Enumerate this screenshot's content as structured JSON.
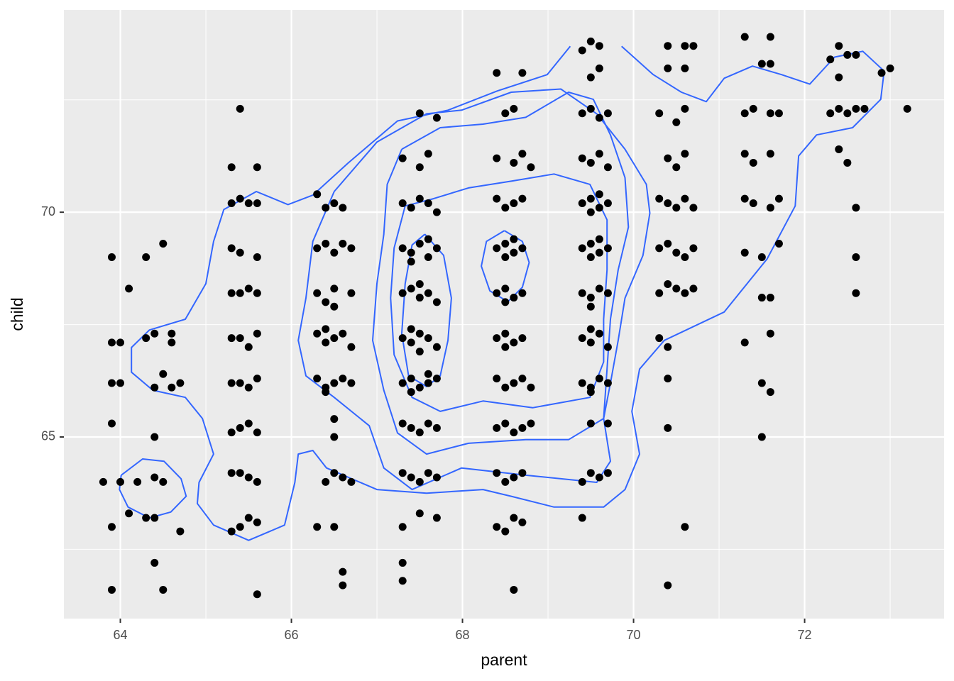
{
  "chart_data": {
    "type": "scatter",
    "x_label": "parent",
    "y_label": "child",
    "xlim": [
      63.34,
      73.63
    ],
    "ylim": [
      60.96,
      74.5
    ],
    "xticks": [
      64,
      66,
      68,
      70,
      72
    ],
    "yticks": [
      65,
      70
    ],
    "xminor": [
      65,
      67,
      69,
      71,
      73
    ],
    "yminor": [
      62.5,
      67.5,
      72.5
    ],
    "grid": true,
    "series": [
      {
        "color": "#000000",
        "x": [
          63.9,
          64.5,
          64.4,
          63.9,
          64.7,
          64.1,
          64.3,
          64.4,
          63.8,
          64.0,
          64.2,
          64.4,
          64.5,
          64.4,
          63.9,
          63.9,
          64.0,
          64.4,
          64.6,
          64.7,
          64.5,
          63.9,
          64.0,
          64.3,
          64.4,
          64.6,
          64.6,
          64.1,
          63.9,
          64.3,
          64.5,
          65.6,
          65.3,
          65.4,
          65.5,
          65.6,
          65.4,
          65.5,
          65.6,
          65.3,
          65.3,
          65.4,
          65.5,
          65.6,
          65.4,
          65.5,
          65.6,
          65.3,
          65.5,
          65.4,
          65.6,
          65.3,
          65.4,
          65.5,
          65.6,
          65.3,
          65.3,
          65.4,
          65.6,
          65.3,
          65.4,
          65.6,
          65.5,
          65.3,
          65.6,
          65.4,
          66.6,
          66.6,
          66.3,
          66.5,
          66.4,
          66.5,
          66.6,
          66.7,
          66.5,
          66.5,
          66.3,
          66.4,
          66.5,
          66.6,
          66.7,
          66.4,
          66.3,
          66.4,
          66.5,
          66.6,
          66.7,
          66.4,
          66.3,
          66.4,
          66.5,
          66.7,
          66.5,
          66.3,
          66.4,
          66.5,
          66.6,
          66.7,
          66.4,
          66.6,
          66.3,
          66.5,
          67.3,
          67.3,
          67.3,
          67.5,
          67.7,
          67.3,
          67.4,
          67.5,
          67.6,
          67.7,
          67.3,
          67.4,
          67.5,
          67.6,
          67.7,
          67.3,
          67.4,
          67.5,
          67.6,
          67.7,
          67.4,
          67.6,
          67.3,
          67.4,
          67.5,
          67.6,
          67.7,
          67.5,
          67.4,
          67.3,
          67.4,
          67.5,
          67.6,
          67.7,
          67.5,
          67.3,
          67.4,
          67.5,
          67.6,
          67.7,
          67.4,
          67.6,
          67.3,
          67.4,
          67.5,
          67.6,
          67.7,
          67.3,
          67.5,
          67.6,
          67.5,
          67.7,
          68.6,
          68.4,
          68.5,
          68.6,
          68.7,
          68.4,
          68.5,
          68.6,
          68.7,
          68.4,
          68.5,
          68.6,
          68.7,
          68.8,
          68.4,
          68.5,
          68.6,
          68.7,
          68.8,
          68.4,
          68.5,
          68.6,
          68.7,
          68.5,
          68.4,
          68.5,
          68.6,
          68.7,
          68.5,
          68.4,
          68.5,
          68.6,
          68.7,
          68.5,
          68.6,
          68.4,
          68.5,
          68.6,
          68.7,
          68.4,
          68.6,
          68.7,
          68.8,
          68.5,
          68.6,
          68.4,
          68.7,
          69.4,
          69.4,
          69.5,
          69.6,
          69.7,
          69.5,
          69.7,
          69.4,
          69.5,
          69.6,
          69.7,
          69.5,
          69.4,
          69.5,
          69.6,
          69.7,
          69.5,
          69.4,
          69.5,
          69.6,
          69.7,
          69.5,
          69.4,
          69.5,
          69.6,
          69.7,
          69.5,
          69.6,
          69.4,
          69.5,
          69.6,
          69.7,
          69.5,
          69.6,
          69.4,
          69.5,
          69.6,
          69.7,
          69.4,
          69.5,
          69.6,
          69.7,
          69.5,
          69.6,
          69.4,
          69.5,
          69.6,
          70.4,
          70.6,
          70.4,
          70.4,
          70.3,
          70.4,
          70.3,
          70.4,
          70.5,
          70.6,
          70.7,
          70.3,
          70.4,
          70.5,
          70.6,
          70.7,
          70.3,
          70.4,
          70.5,
          70.6,
          70.7,
          70.4,
          70.5,
          70.6,
          70.3,
          70.6,
          70.5,
          70.4,
          70.6,
          70.4,
          70.6,
          70.7,
          71.5,
          71.5,
          71.6,
          71.3,
          71.6,
          71.5,
          71.6,
          71.3,
          71.5,
          71.7,
          71.3,
          71.4,
          71.6,
          71.7,
          71.3,
          71.4,
          71.6,
          71.3,
          71.4,
          71.6,
          71.7,
          71.5,
          71.6,
          71.3,
          71.6,
          72.6,
          72.6,
          72.6,
          72.5,
          72.4,
          72.3,
          72.4,
          72.5,
          72.6,
          72.7,
          72.4,
          72.3,
          72.5,
          72.6,
          72.4,
          72.9,
          73.0,
          73.2
        ],
        "values": [
          61.6,
          61.6,
          62.2,
          63.0,
          62.9,
          63.3,
          63.2,
          63.2,
          64.0,
          64.0,
          64.0,
          64.1,
          64.0,
          65.0,
          65.3,
          66.2,
          66.2,
          66.1,
          66.1,
          66.2,
          66.4,
          67.1,
          67.1,
          67.2,
          67.3,
          67.3,
          67.1,
          68.3,
          69.0,
          69.0,
          69.3,
          61.5,
          62.9,
          63.0,
          63.2,
          63.1,
          64.2,
          64.1,
          64.0,
          64.2,
          65.1,
          65.2,
          65.3,
          65.1,
          66.2,
          66.1,
          66.3,
          66.2,
          67.0,
          67.2,
          67.3,
          67.2,
          68.2,
          68.3,
          68.2,
          68.2,
          69.2,
          69.1,
          69.0,
          70.2,
          70.3,
          70.2,
          70.2,
          71.0,
          71.0,
          72.3,
          61.7,
          62.0,
          63.0,
          63.0,
          64.0,
          64.2,
          64.1,
          64.0,
          65.0,
          65.4,
          66.3,
          66.1,
          66.2,
          66.3,
          66.2,
          66.0,
          67.3,
          67.1,
          67.2,
          67.3,
          67.0,
          67.4,
          68.2,
          68.0,
          68.3,
          68.2,
          67.9,
          69.2,
          69.3,
          69.1,
          69.3,
          69.2,
          70.1,
          70.1,
          70.4,
          70.2,
          61.8,
          62.2,
          63.0,
          63.3,
          63.2,
          64.2,
          64.1,
          64.0,
          64.2,
          64.1,
          65.3,
          65.2,
          65.1,
          65.3,
          65.2,
          66.2,
          66.3,
          66.1,
          66.2,
          66.3,
          66.0,
          66.4,
          67.2,
          67.1,
          67.3,
          67.2,
          67.0,
          66.9,
          67.4,
          68.2,
          68.3,
          68.1,
          68.2,
          68.0,
          68.4,
          69.2,
          69.1,
          69.3,
          69.0,
          69.2,
          68.9,
          69.4,
          70.2,
          70.1,
          70.3,
          70.2,
          70.0,
          71.2,
          71.0,
          71.3,
          72.2,
          72.1,
          61.6,
          63.0,
          62.9,
          63.2,
          63.1,
          64.2,
          64.0,
          64.1,
          64.2,
          65.2,
          65.3,
          65.1,
          65.2,
          65.3,
          66.3,
          66.1,
          66.2,
          66.3,
          66.1,
          67.2,
          67.3,
          67.1,
          67.2,
          67.0,
          68.2,
          68.3,
          68.1,
          68.2,
          68.0,
          69.2,
          69.3,
          69.1,
          69.2,
          69.0,
          69.4,
          70.3,
          70.1,
          70.2,
          70.3,
          71.2,
          71.1,
          71.3,
          71.0,
          72.2,
          72.3,
          73.1,
          73.1,
          63.2,
          64.0,
          64.2,
          64.1,
          64.2,
          65.3,
          65.3,
          66.2,
          66.1,
          66.3,
          66.2,
          66.0,
          67.2,
          67.1,
          67.3,
          67.0,
          67.4,
          68.2,
          68.1,
          68.3,
          68.2,
          67.9,
          69.2,
          69.3,
          69.1,
          69.2,
          69.0,
          69.4,
          70.2,
          70.3,
          70.1,
          70.2,
          70.0,
          70.4,
          71.2,
          71.1,
          71.3,
          71.0,
          72.2,
          72.3,
          72.1,
          72.2,
          73.0,
          73.2,
          73.6,
          73.8,
          73.7,
          61.7,
          63.0,
          65.2,
          66.3,
          67.2,
          67.0,
          68.2,
          68.4,
          68.3,
          68.2,
          68.3,
          69.2,
          69.3,
          69.1,
          69.0,
          69.2,
          70.3,
          70.2,
          70.1,
          70.3,
          70.1,
          71.2,
          71.0,
          71.3,
          72.2,
          72.3,
          72.0,
          73.2,
          73.2,
          73.7,
          73.7,
          73.7,
          65.0,
          66.2,
          66.0,
          67.1,
          67.3,
          68.1,
          68.1,
          69.1,
          69.0,
          69.3,
          70.3,
          70.2,
          70.1,
          70.3,
          71.3,
          71.1,
          71.3,
          72.2,
          72.3,
          72.2,
          72.2,
          73.3,
          73.3,
          73.9,
          73.9,
          68.2,
          69.0,
          70.1,
          71.1,
          71.4,
          72.2,
          72.3,
          72.2,
          72.3,
          72.3,
          73.0,
          73.4,
          73.5,
          73.5,
          73.7,
          73.1,
          73.2,
          72.3
        ]
      }
    ],
    "contour_color": "#3366ff",
    "contours": [
      {
        "x": [
          69.26,
          68.99,
          68.41,
          67.83,
          67.24,
          66.66,
          66.25,
          65.96,
          65.59,
          65.21,
          65.09,
          65.0,
          64.76,
          64.34,
          64.13,
          64.13,
          64.38,
          64.76,
          64.96,
          65.09,
          64.92,
          64.9,
          65.09,
          65.5,
          65.92,
          66.04,
          66.08,
          66.25,
          66.41,
          67.0,
          67.58,
          68.24,
          68.57,
          69.07,
          69.65,
          69.9,
          70.07,
          69.98,
          70.07,
          70.36,
          71.06,
          71.56,
          71.89,
          71.93,
          72.14,
          72.56,
          72.89,
          72.93,
          72.68,
          72.35,
          72.06,
          71.73,
          71.39,
          71.06,
          70.85,
          70.56,
          70.23,
          69.86
        ],
        "values": [
          73.69,
          73.06,
          72.7,
          72.27,
          72.03,
          71.09,
          70.38,
          70.17,
          70.46,
          70.06,
          69.35,
          68.41,
          67.62,
          67.38,
          66.99,
          66.44,
          66.04,
          65.88,
          65.41,
          64.62,
          63.99,
          63.52,
          63.04,
          62.7,
          63.04,
          63.99,
          64.62,
          64.7,
          64.31,
          63.83,
          63.75,
          63.83,
          63.68,
          63.44,
          63.44,
          63.83,
          64.62,
          65.57,
          66.51,
          67.15,
          67.78,
          68.96,
          70.14,
          71.25,
          71.72,
          71.88,
          72.51,
          73.14,
          73.58,
          73.45,
          72.85,
          73.06,
          73.25,
          72.98,
          72.46,
          72.67,
          73.06,
          73.69
        ]
      },
      {
        "x": [
          64.01,
          64.26,
          64.51,
          64.71,
          64.77,
          64.59,
          64.34,
          64.09,
          63.99,
          64.01
        ],
        "values": [
          64.15,
          64.51,
          64.46,
          64.07,
          63.68,
          63.33,
          63.2,
          63.44,
          63.83,
          64.15
        ]
      },
      {
        "x": [
          66.5,
          67.0,
          67.58,
          67.99,
          68.57,
          69.15,
          69.57,
          69.9,
          70.15,
          70.19,
          70.11,
          69.9,
          69.82,
          69.73,
          69.65,
          69.73,
          69.57,
          68.74,
          67.99,
          67.41,
          67.08,
          66.91,
          66.5,
          66.17,
          66.08,
          66.17,
          66.25,
          66.5
        ],
        "values": [
          70.46,
          71.56,
          72.19,
          72.27,
          72.67,
          72.74,
          72.19,
          71.4,
          70.62,
          69.98,
          69.04,
          68.09,
          67.15,
          66.2,
          65.41,
          64.46,
          63.99,
          64.15,
          64.31,
          63.83,
          64.31,
          65.25,
          65.88,
          66.36,
          67.15,
          68.09,
          69.35,
          70.46
        ]
      },
      {
        "x": [
          67.29,
          67.74,
          68.24,
          68.74,
          69.24,
          69.53,
          69.73,
          69.9,
          69.94,
          69.82,
          69.73,
          69.69,
          69.65,
          69.24,
          68.74,
          68.07,
          67.58,
          67.24,
          67.08,
          66.95,
          67.0,
          67.08,
          67.12,
          67.29
        ],
        "values": [
          71.4,
          71.88,
          71.96,
          72.11,
          72.67,
          72.51,
          71.72,
          70.77,
          69.67,
          68.72,
          67.62,
          66.51,
          65.41,
          64.94,
          64.94,
          64.86,
          64.62,
          65.09,
          66.04,
          67.15,
          68.41,
          69.51,
          70.62,
          71.4
        ]
      },
      {
        "x": [
          67.33,
          67.66,
          68.07,
          68.57,
          69.07,
          69.49,
          69.69,
          69.69,
          69.65,
          69.65,
          69.49,
          68.82,
          68.24,
          67.74,
          67.41,
          67.2,
          67.16,
          67.2,
          67.33
        ],
        "values": [
          70.14,
          70.3,
          70.54,
          70.69,
          70.85,
          70.62,
          69.83,
          68.72,
          67.62,
          66.67,
          65.88,
          65.65,
          65.8,
          65.57,
          65.88,
          66.83,
          68.09,
          69.2,
          70.14
        ]
      },
      {
        "x": [
          67.56,
          67.78,
          67.87,
          67.83,
          67.74,
          67.58,
          67.37,
          67.29,
          67.33,
          67.41,
          67.56
        ],
        "values": [
          69.51,
          69.04,
          68.09,
          67.15,
          66.36,
          66.12,
          66.36,
          67.3,
          68.41,
          69.27,
          69.51
        ]
      },
      {
        "x": [
          68.49,
          68.7,
          68.78,
          68.7,
          68.53,
          68.32,
          68.22,
          68.28,
          68.49
        ],
        "values": [
          69.59,
          69.35,
          68.88,
          68.33,
          68.01,
          68.25,
          68.8,
          69.35,
          69.59
        ]
      }
    ]
  }
}
